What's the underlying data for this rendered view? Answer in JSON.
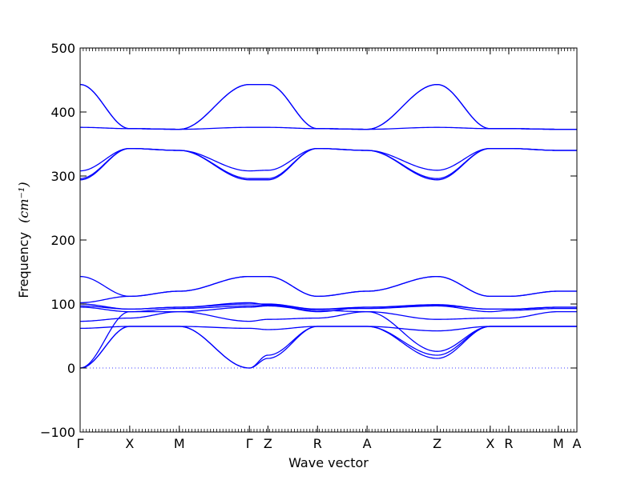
{
  "chart_data": {
    "type": "line",
    "title": "",
    "xlabel": "Wave vector",
    "ylabel": "Frequency",
    "ylabel_unit": "(cm⁻¹)",
    "ylim": [
      -100,
      500
    ],
    "yticks": [
      -100,
      0,
      100,
      200,
      300,
      400,
      500
    ],
    "zero_line": {
      "value": 0,
      "style": "dotted"
    },
    "line_color": "#0000ff",
    "grid": false,
    "legend": "none",
    "high_symmetry_points": [
      {
        "label": "Γ",
        "x": 0.0
      },
      {
        "label": "X",
        "x": 0.5
      },
      {
        "label": "M",
        "x": 1.0
      },
      {
        "label": "Γ",
        "x": 1.707
      },
      {
        "label": "Z",
        "x": 1.894
      },
      {
        "label": "R",
        "x": 2.394
      },
      {
        "label": "A",
        "x": 2.894
      },
      {
        "label": "Z",
        "x": 3.601
      },
      {
        "label": "X",
        "x": 4.136
      },
      {
        "label": "R",
        "x": 4.323
      },
      {
        "label": "M",
        "x": 4.823
      },
      {
        "label": "A",
        "x": 5.01
      }
    ],
    "xlim": [
      0.0,
      5.01
    ],
    "segments": [
      {
        "from": "Γ",
        "to": "X",
        "bands": [
          [
            0,
            65
          ],
          [
            0,
            65
          ],
          [
            0,
            88
          ],
          [
            62,
            65
          ],
          [
            73,
            78
          ],
          [
            95,
            88
          ],
          [
            97,
            92
          ],
          [
            100,
            92
          ],
          [
            102,
            112
          ],
          [
            143,
            112
          ],
          [
            294,
            343
          ],
          [
            296,
            343
          ],
          [
            308,
            343
          ],
          [
            376,
            374
          ],
          [
            443,
            374
          ],
          [
            443,
            374
          ]
        ]
      },
      {
        "from": "X",
        "to": "M",
        "bands": [
          [
            65,
            65
          ],
          [
            65,
            65
          ],
          [
            88,
            88
          ],
          [
            65,
            65
          ],
          [
            78,
            88
          ],
          [
            88,
            93
          ],
          [
            92,
            95
          ],
          [
            92,
            95
          ],
          [
            112,
            120
          ],
          [
            112,
            120
          ],
          [
            343,
            340
          ],
          [
            343,
            340
          ],
          [
            343,
            340
          ],
          [
            374,
            373
          ],
          [
            374,
            373
          ],
          [
            374,
            373
          ]
        ]
      },
      {
        "from": "M",
        "to": "Γ",
        "bands": [
          [
            65,
            0
          ],
          [
            65,
            0
          ],
          [
            88,
            73
          ],
          [
            65,
            62
          ],
          [
            88,
            95
          ],
          [
            93,
            97
          ],
          [
            95,
            100
          ],
          [
            95,
            102
          ],
          [
            120,
            143
          ],
          [
            120,
            143
          ],
          [
            340,
            294
          ],
          [
            340,
            296
          ],
          [
            340,
            308
          ],
          [
            373,
            376
          ],
          [
            373,
            443
          ],
          [
            373,
            443
          ]
        ]
      },
      {
        "from": "Γ",
        "to": "Z",
        "bands": [
          [
            0,
            15
          ],
          [
            0,
            20
          ],
          [
            73,
            76
          ],
          [
            62,
            60
          ],
          [
            95,
            97
          ],
          [
            97,
            98
          ],
          [
            100,
            100
          ],
          [
            102,
            99
          ],
          [
            143,
            143
          ],
          [
            143,
            143
          ],
          [
            294,
            294
          ],
          [
            296,
            296
          ],
          [
            308,
            309
          ],
          [
            376,
            376
          ],
          [
            443,
            443
          ],
          [
            443,
            443
          ]
        ]
      },
      {
        "from": "Z",
        "to": "R",
        "bands": [
          [
            15,
            65
          ],
          [
            20,
            65
          ],
          [
            76,
            78
          ],
          [
            60,
            65
          ],
          [
            97,
            90
          ],
          [
            98,
            92
          ],
          [
            100,
            92
          ],
          [
            99,
            88
          ],
          [
            143,
            112
          ],
          [
            143,
            112
          ],
          [
            294,
            343
          ],
          [
            296,
            343
          ],
          [
            309,
            343
          ],
          [
            376,
            374
          ],
          [
            443,
            374
          ],
          [
            443,
            374
          ]
        ]
      },
      {
        "from": "R",
        "to": "A",
        "bands": [
          [
            65,
            65
          ],
          [
            65,
            65
          ],
          [
            78,
            88
          ],
          [
            65,
            65
          ],
          [
            90,
            88
          ],
          [
            92,
            93
          ],
          [
            92,
            95
          ],
          [
            88,
            95
          ],
          [
            112,
            120
          ],
          [
            112,
            120
          ],
          [
            343,
            340
          ],
          [
            343,
            340
          ],
          [
            343,
            340
          ],
          [
            374,
            373
          ],
          [
            374,
            373
          ],
          [
            374,
            373
          ]
        ]
      },
      {
        "from": "A",
        "to": "Z",
        "bands": [
          [
            65,
            15
          ],
          [
            65,
            20
          ],
          [
            88,
            26
          ],
          [
            65,
            58
          ],
          [
            88,
            76
          ],
          [
            93,
            97
          ],
          [
            95,
            98
          ],
          [
            95,
            99
          ],
          [
            120,
            143
          ],
          [
            120,
            143
          ],
          [
            340,
            294
          ],
          [
            340,
            296
          ],
          [
            340,
            309
          ],
          [
            373,
            376
          ],
          [
            373,
            443
          ],
          [
            373,
            443
          ]
        ]
      },
      {
        "from": "Z",
        "to": "X",
        "bands": [
          [
            15,
            65
          ],
          [
            20,
            65
          ],
          [
            26,
            65
          ],
          [
            58,
            65
          ],
          [
            76,
            78
          ],
          [
            97,
            88
          ],
          [
            98,
            92
          ],
          [
            99,
            92
          ],
          [
            143,
            112
          ],
          [
            143,
            112
          ],
          [
            294,
            343
          ],
          [
            296,
            343
          ],
          [
            309,
            343
          ],
          [
            376,
            374
          ],
          [
            443,
            374
          ],
          [
            443,
            374
          ]
        ]
      },
      {
        "from": "X",
        "to": "R",
        "bands": [
          [
            65,
            65
          ],
          [
            65,
            65
          ],
          [
            65,
            65
          ],
          [
            65,
            65
          ],
          [
            78,
            78
          ],
          [
            88,
            90
          ],
          [
            92,
            92
          ],
          [
            92,
            92
          ],
          [
            112,
            112
          ],
          [
            112,
            112
          ],
          [
            343,
            343
          ],
          [
            343,
            343
          ],
          [
            343,
            343
          ],
          [
            374,
            374
          ],
          [
            374,
            374
          ],
          [
            374,
            374
          ]
        ]
      },
      {
        "from": "R",
        "to": "M",
        "bands": [
          [
            65,
            65
          ],
          [
            65,
            65
          ],
          [
            65,
            65
          ],
          [
            65,
            65
          ],
          [
            78,
            88
          ],
          [
            90,
            93
          ],
          [
            92,
            95
          ],
          [
            92,
            95
          ],
          [
            112,
            120
          ],
          [
            112,
            120
          ],
          [
            343,
            340
          ],
          [
            343,
            340
          ],
          [
            343,
            340
          ],
          [
            374,
            373
          ],
          [
            374,
            373
          ],
          [
            374,
            373
          ]
        ]
      },
      {
        "from": "M",
        "to": "A",
        "bands": [
          [
            65,
            65
          ],
          [
            65,
            65
          ],
          [
            65,
            65
          ],
          [
            65,
            65
          ],
          [
            88,
            88
          ],
          [
            93,
            93
          ],
          [
            95,
            95
          ],
          [
            95,
            95
          ],
          [
            120,
            120
          ],
          [
            120,
            120
          ],
          [
            340,
            340
          ],
          [
            340,
            340
          ],
          [
            340,
            340
          ],
          [
            373,
            373
          ],
          [
            373,
            373
          ],
          [
            373,
            373
          ]
        ]
      }
    ]
  }
}
